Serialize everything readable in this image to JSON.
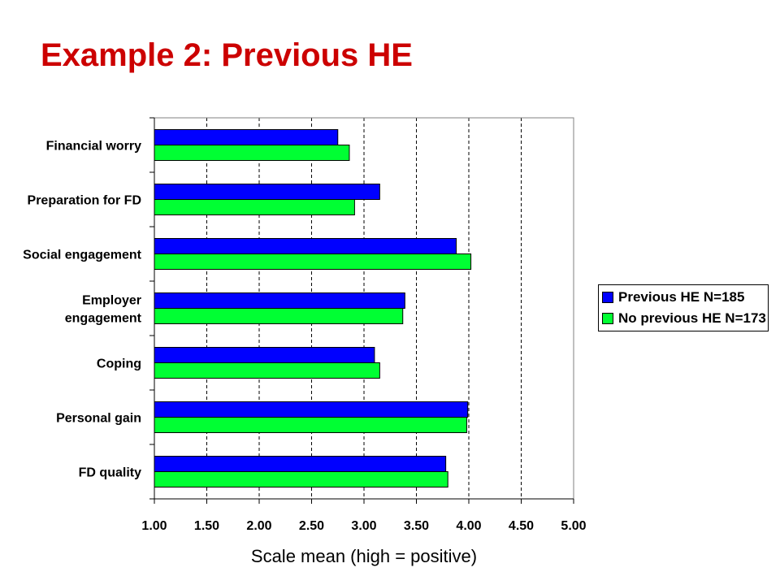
{
  "slide": {
    "title": "Example 2: Previous HE",
    "title_color": "#cc0000"
  },
  "chart_data": {
    "type": "bar",
    "orientation": "horizontal",
    "categories": [
      [
        "Financial worry"
      ],
      [
        "Preparation for FD"
      ],
      [
        "Social engagement"
      ],
      [
        "Employer",
        "engagement"
      ],
      [
        "Coping"
      ],
      [
        "Personal gain"
      ],
      [
        "FD quality"
      ]
    ],
    "series": [
      {
        "name": "Previous HE N=185",
        "color": "#0000ff",
        "values": [
          2.75,
          3.15,
          3.88,
          3.39,
          3.1,
          3.99,
          3.78
        ]
      },
      {
        "name": "No previous HE N=173",
        "color": "#00ff33",
        "values": [
          2.86,
          2.91,
          4.02,
          3.37,
          3.15,
          3.98,
          3.8
        ]
      }
    ],
    "xlim": [
      1.0,
      5.0
    ],
    "xticks": [
      "1.00",
      "1.50",
      "2.00",
      "2.50",
      "3.00",
      "3.50",
      "4.00",
      "4.50",
      "5.00"
    ],
    "xlabel": "Scale mean (high = positive)",
    "ylabel": "",
    "grid": "vertical-dashed",
    "legend_position": "right"
  }
}
